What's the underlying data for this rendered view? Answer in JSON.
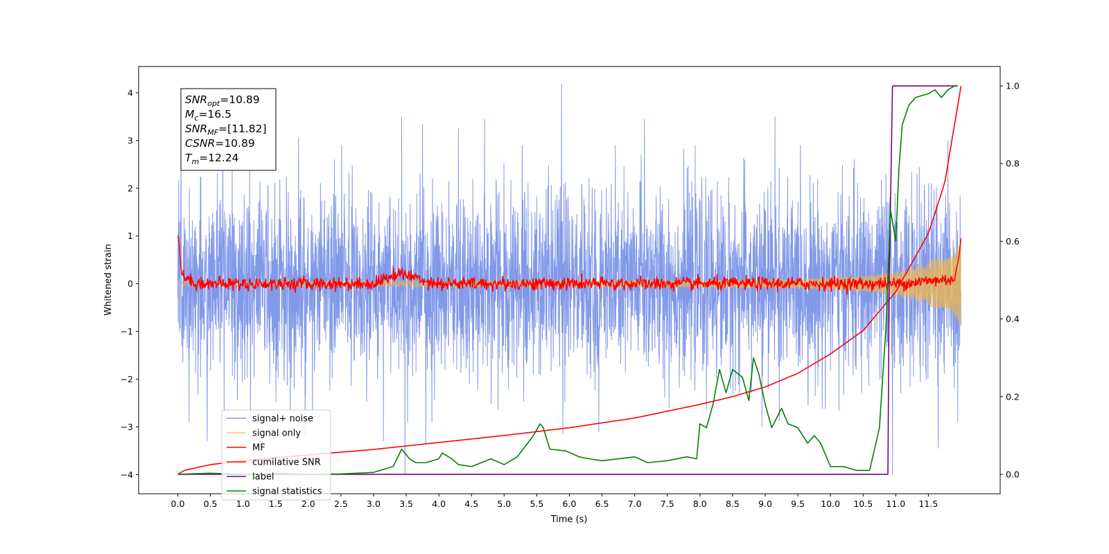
{
  "chart_data": {
    "type": "line",
    "xlabel": "Time (s)",
    "ylabel_left": "Whitened strain",
    "ylabel_right": "",
    "xlim": [
      -0.6,
      12.6
    ],
    "ylim_left": [
      -4.4,
      4.55
    ],
    "ylim_right": [
      -0.05,
      1.05
    ],
    "x_ticks": [
      0.0,
      0.5,
      1.0,
      1.5,
      2.0,
      2.5,
      3.0,
      3.5,
      4.0,
      4.5,
      5.0,
      5.5,
      6.0,
      6.5,
      7.0,
      7.5,
      8.0,
      8.5,
      9.0,
      9.5,
      10.0,
      10.5,
      11.0,
      11.5
    ],
    "x_tick_labels": [
      "0.0",
      "0.5",
      "1.0",
      "1.5",
      "2.0",
      "2.5",
      "3.0",
      "3.5",
      "4.0",
      "4.5",
      "5.0",
      "5.5",
      "6.0",
      "6.5",
      "7.0",
      "7.5",
      "8.0",
      "8.5",
      "9.0",
      "9.5",
      "10.0",
      "10.5",
      "11.0",
      "11.5"
    ],
    "y_left_ticks": [
      -4,
      -3,
      -2,
      -1,
      0,
      1,
      2,
      3,
      4
    ],
    "y_left_tick_labels": [
      "−4",
      "−3",
      "−2",
      "−1",
      "0",
      "1",
      "2",
      "3",
      "4"
    ],
    "y_right_ticks": [
      0.0,
      0.2,
      0.4,
      0.6,
      0.8,
      1.0
    ],
    "y_right_tick_labels": [
      "0.0",
      "0.2",
      "0.4",
      "0.6",
      "0.8",
      "1.0"
    ],
    "grid": false,
    "legend_position": "lower-left",
    "annotation": {
      "lines": [
        {
          "main": "SNR",
          "sub": "opt",
          "value": "=10.89"
        },
        {
          "main": "M",
          "sub": "c",
          "value": "=16.5"
        },
        {
          "main": "SNR",
          "sub": "MF",
          "value": "=[11.82]"
        },
        {
          "main": "CSNR",
          "sub": "",
          "value": "=10.89"
        },
        {
          "main": "T",
          "sub": "m",
          "value": "=12.24"
        }
      ]
    },
    "series": [
      {
        "name": "signal+ noise",
        "axis": "left",
        "color": "#7b93e8",
        "style": "noise band, roughly ±2.5 with spikes to about ±4.2",
        "x_range": [
          0.0,
          12.0
        ],
        "peaks": [
          {
            "x": 0.05,
            "y": 2.6
          },
          {
            "x": 0.45,
            "y": 2.5
          },
          {
            "x": 1.1,
            "y": 2.4
          },
          {
            "x": 1.85,
            "y": 3.05
          },
          {
            "x": 2.4,
            "y": 2.6
          },
          {
            "x": 3.43,
            "y": 3.5
          },
          {
            "x": 3.75,
            "y": 3.35
          },
          {
            "x": 4.3,
            "y": 3.25
          },
          {
            "x": 4.7,
            "y": 3.45
          },
          {
            "x": 5.88,
            "y": 4.18
          },
          {
            "x": 7.15,
            "y": 3.45
          },
          {
            "x": 7.1,
            "y": 2.7
          },
          {
            "x": 9.15,
            "y": 3.5
          },
          {
            "x": 10.85,
            "y": 2.3
          },
          {
            "x": 11.8,
            "y": 3.0
          },
          {
            "x": 11.95,
            "y": 3.35
          }
        ],
        "troughs": [
          {
            "x": 0.45,
            "y": -3.3
          },
          {
            "x": 1.95,
            "y": -3.2
          },
          {
            "x": 3.48,
            "y": -4.0
          },
          {
            "x": 3.15,
            "y": -3.3
          },
          {
            "x": 3.8,
            "y": -3.35
          },
          {
            "x": 5.9,
            "y": -3.15
          },
          {
            "x": 6.45,
            "y": -3.1
          },
          {
            "x": 8.95,
            "y": -3.0
          },
          {
            "x": 10.95,
            "y": -4.0
          },
          {
            "x": 11.65,
            "y": -3.45
          },
          {
            "x": 11.95,
            "y": -2.9
          }
        ]
      },
      {
        "name": "signal only",
        "axis": "left",
        "color": "#f0b84a",
        "style": "chirp oscillation around 0",
        "envelope": {
          "x": [
            0.0,
            4.0,
            8.0,
            9.5,
            10.5,
            11.0,
            11.5,
            11.9,
            12.0
          ],
          "amplitude": [
            0.05,
            0.06,
            0.08,
            0.1,
            0.17,
            0.25,
            0.45,
            0.8,
            0.95
          ]
        }
      },
      {
        "name": "MF",
        "axis": "left",
        "color": "#ff0000",
        "style": "noisy trace around 0",
        "x": [
          0.0,
          0.02,
          0.04,
          0.06,
          0.1,
          0.2,
          0.4,
          1.0,
          2.0,
          3.0,
          3.38,
          4.0,
          5.0,
          6.0,
          7.0,
          8.0,
          9.0,
          10.0,
          11.0,
          11.9,
          11.96,
          12.0
        ],
        "y": [
          1.0,
          0.9,
          0.5,
          0.2,
          0.15,
          0.05,
          0.0,
          0.0,
          0.0,
          0.0,
          0.22,
          0.0,
          0.0,
          0.0,
          0.0,
          0.0,
          0.0,
          0.0,
          0.0,
          0.1,
          0.5,
          0.95
        ]
      },
      {
        "name": "cumilative SNR",
        "axis": "right",
        "color": "#ff0000",
        "x": [
          0.0,
          0.1,
          0.5,
          1.0,
          2.0,
          3.0,
          4.0,
          5.0,
          6.0,
          7.0,
          8.0,
          8.5,
          9.0,
          9.5,
          10.0,
          10.5,
          11.0,
          11.5,
          11.75,
          12.0
        ],
        "y": [
          0.0,
          0.01,
          0.025,
          0.035,
          0.05,
          0.064,
          0.082,
          0.1,
          0.12,
          0.145,
          0.18,
          0.2,
          0.225,
          0.26,
          0.31,
          0.37,
          0.47,
          0.62,
          0.75,
          1.0
        ]
      },
      {
        "name": "label",
        "axis": "right",
        "color": "#800080",
        "x": [
          0.0,
          10.88,
          10.9,
          10.95,
          11.95
        ],
        "y": [
          0.0,
          0.0,
          0.5,
          1.0,
          1.0
        ]
      },
      {
        "name": "signal statistics",
        "axis": "right",
        "color": "#008000",
        "x": [
          0.0,
          0.5,
          1.0,
          1.5,
          2.0,
          2.5,
          3.0,
          3.3,
          3.43,
          3.55,
          3.65,
          3.8,
          4.0,
          4.05,
          4.2,
          4.3,
          4.5,
          4.8,
          5.0,
          5.2,
          5.45,
          5.55,
          5.6,
          5.7,
          5.95,
          6.15,
          6.3,
          6.5,
          7.0,
          7.2,
          7.5,
          7.8,
          7.95,
          8.0,
          8.1,
          8.2,
          8.3,
          8.4,
          8.5,
          8.65,
          8.75,
          8.82,
          8.9,
          9.0,
          9.1,
          9.25,
          9.35,
          9.5,
          9.65,
          9.75,
          9.85,
          10.0,
          10.2,
          10.4,
          10.6,
          10.75,
          10.85,
          10.92,
          10.95,
          11.0,
          11.05,
          11.1,
          11.2,
          11.3,
          11.5,
          11.6,
          11.7,
          11.8,
          11.9,
          11.95
        ],
        "y": [
          0.0,
          0.003,
          0.0,
          0.002,
          0.0,
          0.001,
          0.005,
          0.02,
          0.065,
          0.04,
          0.03,
          0.03,
          0.04,
          0.055,
          0.04,
          0.025,
          0.02,
          0.04,
          0.025,
          0.045,
          0.1,
          0.13,
          0.12,
          0.065,
          0.06,
          0.045,
          0.04,
          0.035,
          0.045,
          0.03,
          0.035,
          0.045,
          0.04,
          0.13,
          0.12,
          0.18,
          0.27,
          0.21,
          0.27,
          0.25,
          0.19,
          0.3,
          0.26,
          0.18,
          0.12,
          0.17,
          0.13,
          0.12,
          0.08,
          0.1,
          0.08,
          0.02,
          0.02,
          0.01,
          0.01,
          0.12,
          0.38,
          0.68,
          0.65,
          0.6,
          0.79,
          0.9,
          0.95,
          0.97,
          0.98,
          0.99,
          0.97,
          0.99,
          1.0,
          1.0
        ]
      }
    ]
  }
}
